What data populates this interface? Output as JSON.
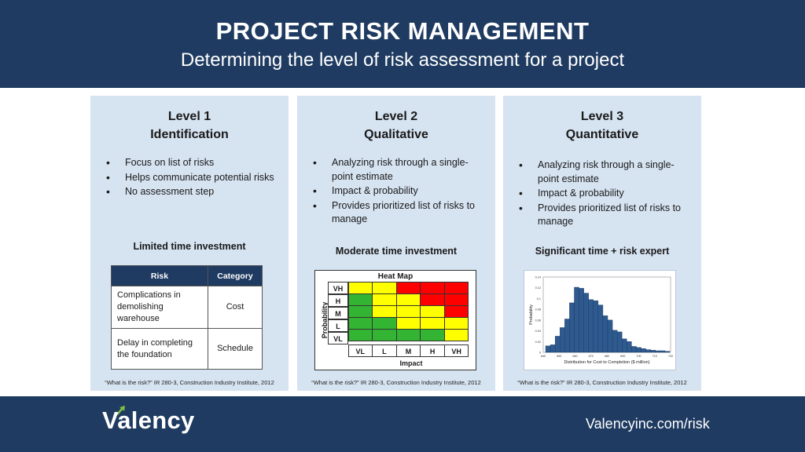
{
  "header": {
    "title": "PROJECT RISK MANAGEMENT",
    "subtitle": "Determining the level of risk assessment for a project"
  },
  "panels": [
    {
      "title_line1": "Level 1",
      "title_line2": "Identification",
      "bullets": [
        "Focus on list of risks",
        "Helps communicate potential risks",
        "No assessment step"
      ],
      "investment": "Limited time investment",
      "citation": "“What is the risk?” IR 280-3, Construction Industry Institute, 2012"
    },
    {
      "title_line1": "Level 2",
      "title_line2": "Qualitative",
      "bullets": [
        "Analyzing risk through a single-point estimate",
        "Impact & probability",
        "Provides prioritized list of risks to manage"
      ],
      "investment": "Moderate time investment",
      "citation": "“What is the risk?” IR 280-3, Construction Industry Institute, 2012"
    },
    {
      "title_line1": "Level 3",
      "title_line2": "Quantitative",
      "bullets": [
        "Analyzing risk through a single-point estimate",
        "Impact & probability",
        "Provides prioritized list of risks to manage"
      ],
      "investment": "Significant time + risk expert",
      "citation": "“What is the risk?” IR 280-3, Construction Industry Institute, 2012"
    }
  ],
  "risk_table": {
    "headers": [
      "Risk",
      "Category"
    ],
    "rows": [
      {
        "risk": "Complications in demolishing warehouse",
        "category": "Cost"
      },
      {
        "risk": "Delay in completing the foundation",
        "category": "Schedule"
      }
    ]
  },
  "heatmap": {
    "title": "Heat Map",
    "ylabel": "Probability",
    "xlabel": "Impact",
    "rows": [
      "VH",
      "H",
      "M",
      "L",
      "VL"
    ],
    "cols": [
      "VL",
      "L",
      "M",
      "H",
      "VH"
    ],
    "colors": {
      "green": "#33b533",
      "yellow": "#ffff00",
      "red": "#ff0000"
    },
    "grid": [
      [
        "yellow",
        "yellow",
        "red",
        "red",
        "red"
      ],
      [
        "green",
        "yellow",
        "yellow",
        "red",
        "red"
      ],
      [
        "green",
        "yellow",
        "yellow",
        "yellow",
        "red"
      ],
      [
        "green",
        "green",
        "yellow",
        "yellow",
        "yellow"
      ],
      [
        "green",
        "green",
        "green",
        "green",
        "yellow"
      ]
    ]
  },
  "chart_data": {
    "type": "bar",
    "xlabel": "Distribution for Cost to Completion ($ million)",
    "ylabel": "Probability",
    "x_ticks": [
      "640",
      "650",
      "660",
      "670",
      "680",
      "690",
      "700",
      "710",
      "720"
    ],
    "y_ticks": [
      "0",
      "0.02",
      "0.04",
      "0.06",
      "0.08",
      "0.1",
      "0.12",
      "0.14"
    ],
    "xlim": [
      640,
      720
    ],
    "ylim": [
      0,
      0.14
    ],
    "x": [
      643,
      646,
      649,
      652,
      655,
      658,
      661,
      664,
      667,
      670,
      673,
      676,
      679,
      682,
      685,
      688,
      691,
      694,
      697,
      700,
      703,
      706,
      709,
      712,
      715,
      718
    ],
    "values": [
      0.012,
      0.014,
      0.03,
      0.046,
      0.062,
      0.092,
      0.121,
      0.119,
      0.11,
      0.098,
      0.096,
      0.088,
      0.068,
      0.06,
      0.041,
      0.038,
      0.025,
      0.02,
      0.011,
      0.009,
      0.007,
      0.005,
      0.004,
      0.003,
      0.003,
      0.002
    ],
    "bar_color": "#2e5a8f"
  },
  "footer": {
    "logo": "Valency",
    "website": "Valencyinc.com/risk"
  }
}
